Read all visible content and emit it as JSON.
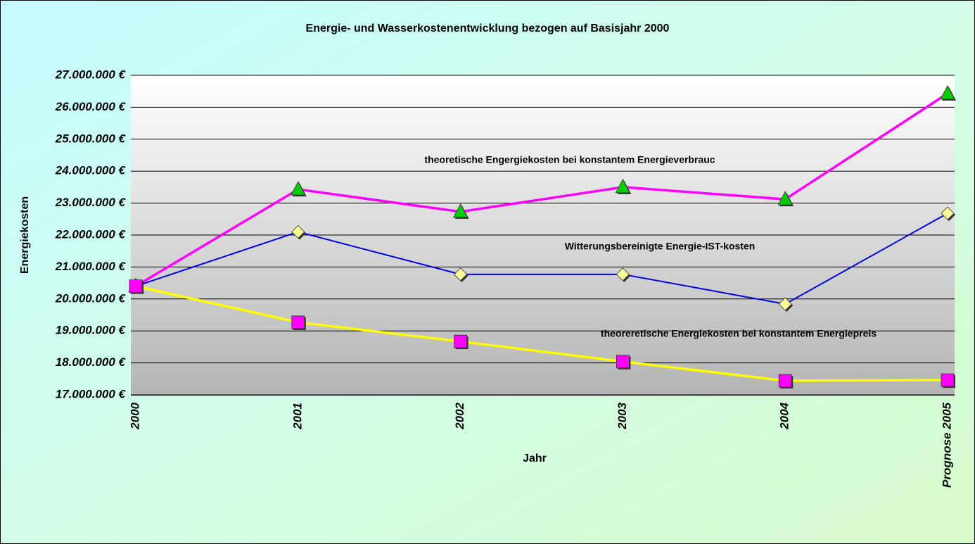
{
  "chart_data": {
    "type": "line",
    "title": "Energie- und Wasserkostenentwicklung bezogen auf Basisjahr 2000",
    "x_label": "Jahr",
    "y_label": "Energiekosten",
    "categories": [
      "2000",
      "2001",
      "2002",
      "2003",
      "2004",
      "Prognose 2005"
    ],
    "series": [
      {
        "name": "theoretische Engergiekosten bei konstantem Energieverbrauc",
        "color": "#ff00ff",
        "marker": "triangle",
        "marker_color": "#00cc00",
        "values": [
          20400000,
          23430000,
          22730000,
          23500000,
          23120000,
          26430000
        ]
      },
      {
        "name": "Witterungsbereinigte Energie-IST-kosten",
        "color": "#0000dd",
        "marker": "diamond",
        "marker_color": "#ffff99",
        "values": [
          20400000,
          22100000,
          20770000,
          20770000,
          19840000,
          22680000
        ]
      },
      {
        "name": "theoreretische Energiekosten bei konstantem Energiepreis",
        "color": "#ffff00",
        "marker": "square",
        "marker_color": "#ff00ff",
        "values": [
          20400000,
          19270000,
          18670000,
          18040000,
          17440000,
          17460000
        ]
      }
    ],
    "ylim": [
      17000000,
      27000000
    ],
    "yticks": [
      {
        "value": 17000000,
        "label": "17.000.000 €"
      },
      {
        "value": 18000000,
        "label": "18.000.000 €"
      },
      {
        "value": 19000000,
        "label": "19.000.000 €"
      },
      {
        "value": 20000000,
        "label": "20.000.000 €"
      },
      {
        "value": 21000000,
        "label": "21.000.000 €"
      },
      {
        "value": 22000000,
        "label": "22.000.000 €"
      },
      {
        "value": 23000000,
        "label": "23.000.000 €"
      },
      {
        "value": 24000000,
        "label": "24.000.000 €"
      },
      {
        "value": 25000000,
        "label": "25.000.000 €"
      },
      {
        "value": 26000000,
        "label": "26.000.000 €"
      },
      {
        "value": 27000000,
        "label": "27.000.000 €"
      }
    ],
    "grid": true
  }
}
